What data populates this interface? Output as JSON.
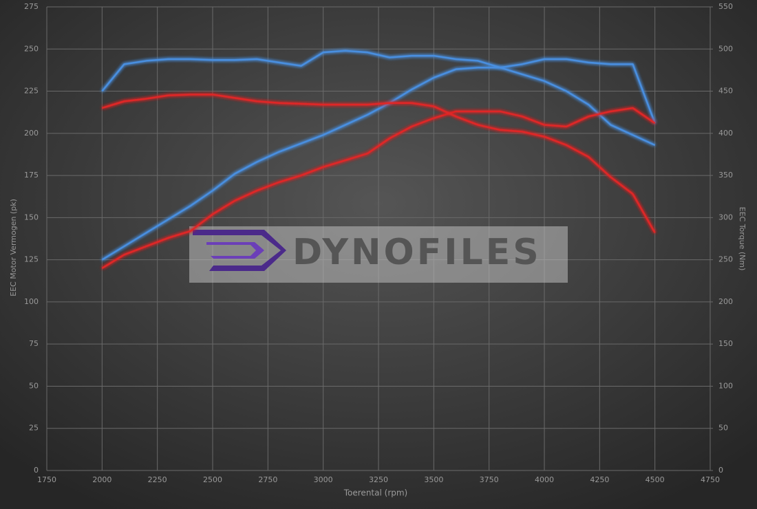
{
  "chart_data": {
    "type": "line",
    "x_label": "Toerental (rpm)",
    "y_label": "EEC Motor Vermogen (pk)",
    "y2_label": "EEC Torque (Nm)",
    "watermark": "DYNOFILES",
    "x": [
      2000,
      2100,
      2200,
      2300,
      2400,
      2500,
      2600,
      2700,
      2800,
      2900,
      3000,
      3100,
      3200,
      3300,
      3400,
      3500,
      3600,
      3700,
      3800,
      3900,
      4000,
      4100,
      4200,
      4300,
      4400,
      4500
    ],
    "series": [
      {
        "color": "#4a8fe0",
        "values": [
          125,
          133,
          141,
          149,
          157,
          166,
          176,
          183,
          189,
          194,
          199,
          205,
          211,
          218,
          226,
          233,
          238,
          239,
          239,
          241,
          244,
          244,
          242,
          241,
          241,
          206
        ]
      },
      {
        "color": "#4a8fe0",
        "axis": "y2",
        "values": [
          450,
          482,
          486,
          488,
          488,
          487,
          487,
          488,
          484,
          480,
          496,
          498,
          496,
          490,
          492,
          492,
          488,
          486,
          478,
          470,
          462,
          450,
          434,
          410,
          398,
          386
        ]
      },
      {
        "color": "#e02828",
        "values": [
          120,
          128,
          133,
          138,
          142,
          152,
          160,
          166,
          171,
          175,
          180,
          184,
          188,
          197,
          204,
          209,
          213,
          213,
          213,
          210,
          205,
          204,
          210,
          213,
          215,
          206
        ]
      },
      {
        "color": "#e02828",
        "axis": "y2",
        "values": [
          430,
          438,
          441,
          445,
          446,
          446,
          442,
          438,
          436,
          435,
          434,
          434,
          434,
          436,
          436,
          432,
          420,
          410,
          404,
          402,
          396,
          386,
          372,
          348,
          328,
          282
        ]
      }
    ],
    "xlim": [
      1750,
      4750
    ],
    "xticks": [
      1750,
      2000,
      2250,
      2500,
      2750,
      3000,
      3250,
      3500,
      3750,
      4000,
      4250,
      4500,
      4750
    ],
    "ylim": [
      0,
      275
    ],
    "yticks": [
      0,
      25,
      50,
      75,
      100,
      125,
      150,
      175,
      200,
      225,
      250,
      275
    ],
    "y2lim": [
      0,
      550
    ],
    "y2ticks": [
      0,
      50,
      100,
      150,
      200,
      250,
      300,
      350,
      400,
      450,
      500,
      550
    ],
    "grid": true
  }
}
